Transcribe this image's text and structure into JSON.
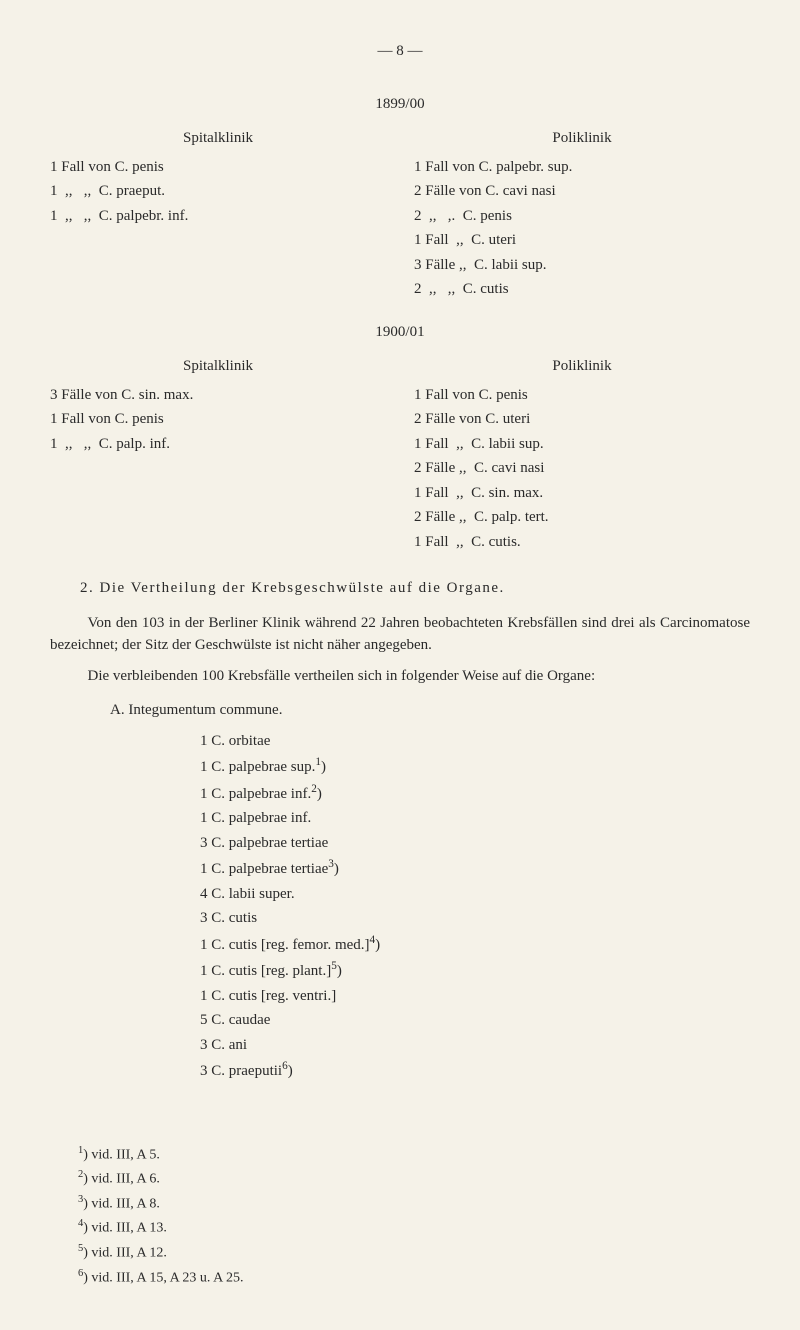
{
  "pageNum": "—  8  —",
  "year1": "1899/00",
  "year2": "1900/01",
  "spital_label": "Spitalklinik",
  "poli_label": "Poliklinik",
  "block1": {
    "left": [
      "1 Fall von C. penis",
      "1  ,,   ,,  C. praeput.",
      "1  ,,   ,,  C. palpebr. inf."
    ],
    "right": [
      "1 Fall von C. palpebr. sup.",
      "2 Fälle von C. cavi nasi",
      "2  ,,   ,.  C. penis",
      "1 Fall  ,,  C. uteri",
      "3 Fälle ,,  C. labii sup.",
      "2  ,,   ,,  C. cutis"
    ]
  },
  "block2": {
    "left": [
      "3 Fälle von C. sin. max.",
      "1 Fall von C. penis",
      "1  ,,   ,,  C. palp. inf."
    ],
    "right": [
      "1 Fall von C. penis",
      "2 Fälle von C. uteri",
      "1 Fall  ,,  C. labii sup.",
      "2 Fälle ,,  C. cavi nasi",
      "1 Fall  ,,  C. sin. max.",
      "2 Fälle ,,  C. palp. tert.",
      "1 Fall  ,,  C. cutis."
    ]
  },
  "section2_title": "2. Die Vertheilung der Krebsgeschwülste auf die Organe.",
  "para1": "Von den 103 in der Berliner Klinik während 22 Jahren beobachteten Krebsfällen sind drei als Carcinomatose bezeichnet; der Sitz der Geschwülste ist nicht näher angegeben.",
  "para2": "Die verbleibenden 100 Krebsfälle vertheilen sich in folgender Weise auf die Organe:",
  "listA_title": "A. Integumentum commune.",
  "listA": [
    {
      "n": "1",
      "txt": "C. orbitae"
    },
    {
      "n": "1",
      "txt": "C. palpebrae sup.",
      "sup": "1",
      "after": ")"
    },
    {
      "n": "1",
      "txt": "C. palpebrae inf.",
      "sup": "2",
      "after": ")"
    },
    {
      "n": "1",
      "txt": "C. palpebrae inf."
    },
    {
      "n": "3",
      "txt": "C. palpebrae tertiae"
    },
    {
      "n": "1",
      "txt": "C. palpebrae tertiae",
      "sup": "3",
      "after": ")"
    },
    {
      "n": "4",
      "txt": "C. labii super."
    },
    {
      "n": "3",
      "txt": "C. cutis"
    },
    {
      "n": "1",
      "txt": "C. cutis [reg. femor. med.]",
      "sup": "4",
      "after": ")"
    },
    {
      "n": "1",
      "txt": "C. cutis [reg. plant.]",
      "sup": "5",
      "after": ")"
    },
    {
      "n": "1",
      "txt": "C. cutis [reg. ventri.]"
    },
    {
      "n": "5",
      "txt": "C. caudae"
    },
    {
      "n": "3",
      "txt": "C. ani"
    },
    {
      "n": "3",
      "txt": "C. praeputii",
      "sup": "6",
      "after": ")"
    }
  ],
  "footnotes": [
    {
      "sup": "1",
      "txt": ") vid. III, A 5."
    },
    {
      "sup": "2",
      "txt": ") vid. III, A 6."
    },
    {
      "sup": "3",
      "txt": ") vid. III, A 8."
    },
    {
      "sup": "4",
      "txt": ") vid. III, A 13."
    },
    {
      "sup": "5",
      "txt": ") vid. III, A 12."
    },
    {
      "sup": "6",
      "txt": ") vid. III, A 15, A 23 u. A 25."
    }
  ]
}
